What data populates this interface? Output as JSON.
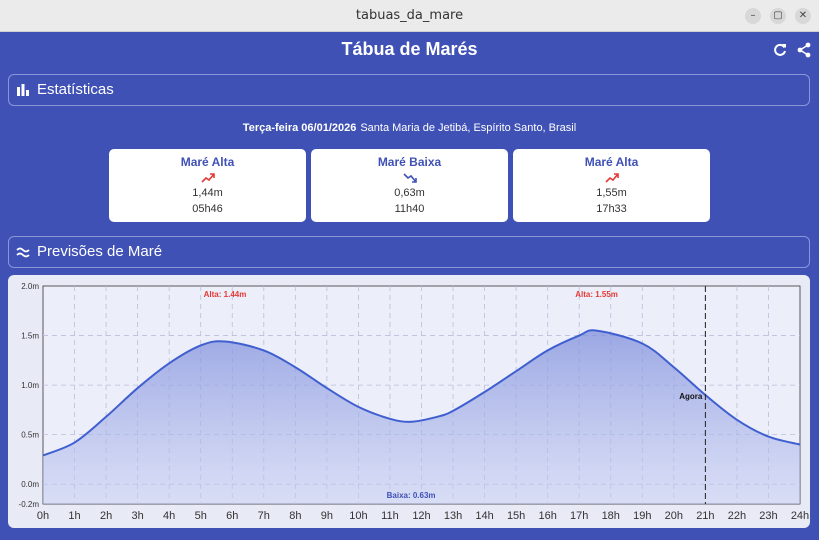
{
  "window": {
    "title": "tabuas_da_mare",
    "min_glyph": "–",
    "max_glyph": "▢",
    "close_glyph": "✕"
  },
  "appbar": {
    "title": "Tábua de Marés",
    "refresh_icon": "refresh-icon",
    "share_icon": "share-icon"
  },
  "stats": {
    "label": "Estatísticas",
    "icon": "bar-chart-icon"
  },
  "date": {
    "day": "Terça-feira 06/01/2026",
    "location": "Santa Maria de Jetibá, Espírito Santo, Brasil"
  },
  "cards": [
    {
      "title": "Maré Alta",
      "trend": "up",
      "height": "1,44m",
      "time": "05h46"
    },
    {
      "title": "Maré Baixa",
      "trend": "down",
      "height": "0,63m",
      "time": "11h40"
    },
    {
      "title": "Maré Alta",
      "trend": "up",
      "height": "1,55m",
      "time": "17h33"
    }
  ],
  "forecast": {
    "label": "Previsões de Maré",
    "icon": "waves-icon"
  },
  "colors": {
    "primary": "#3f51b5",
    "line": "#3f5fd0",
    "high": "#e53935",
    "low": "#3f51b5"
  },
  "chart_data": {
    "type": "area",
    "x_ticks": [
      "0h",
      "1h",
      "2h",
      "3h",
      "4h",
      "5h",
      "6h",
      "7h",
      "8h",
      "9h",
      "10h",
      "11h",
      "12h",
      "13h",
      "14h",
      "15h",
      "16h",
      "17h",
      "18h",
      "19h",
      "20h",
      "21h",
      "22h",
      "23h",
      "24h"
    ],
    "y_ticks": [
      "-0.2m",
      "0.0m",
      "0.5m",
      "1.0m",
      "1.5m",
      "2.0m"
    ],
    "y_tick_values": [
      -0.2,
      0.0,
      0.5,
      1.0,
      1.5,
      2.0
    ],
    "xlim": [
      0,
      24
    ],
    "ylim": [
      -0.2,
      2.0
    ],
    "series": [
      {
        "x": [
          0,
          1,
          2,
          3,
          4,
          5,
          5.77,
          7,
          8,
          9,
          10,
          11,
          11.67,
          12.5,
          13,
          14,
          15,
          16,
          17,
          17.55,
          19,
          20,
          21,
          22,
          23,
          24
        ],
        "values": [
          0.29,
          0.42,
          0.68,
          0.97,
          1.22,
          1.4,
          1.44,
          1.35,
          1.18,
          0.97,
          0.78,
          0.66,
          0.63,
          0.68,
          0.74,
          0.93,
          1.14,
          1.35,
          1.5,
          1.55,
          1.42,
          1.18,
          0.9,
          0.65,
          0.48,
          0.4
        ]
      }
    ],
    "annotations": [
      {
        "text": "Alta: 1.44m",
        "x": 5.77,
        "y": 1.44,
        "kind": "high"
      },
      {
        "text": "Baixa: 0.63m",
        "x": 11.67,
        "y": 0.63,
        "kind": "low"
      },
      {
        "text": "Alta: 1.55m",
        "x": 17.55,
        "y": 1.55,
        "kind": "high"
      }
    ],
    "now": {
      "label": "Agora",
      "x": 21
    },
    "grid": true,
    "legend": "none"
  }
}
